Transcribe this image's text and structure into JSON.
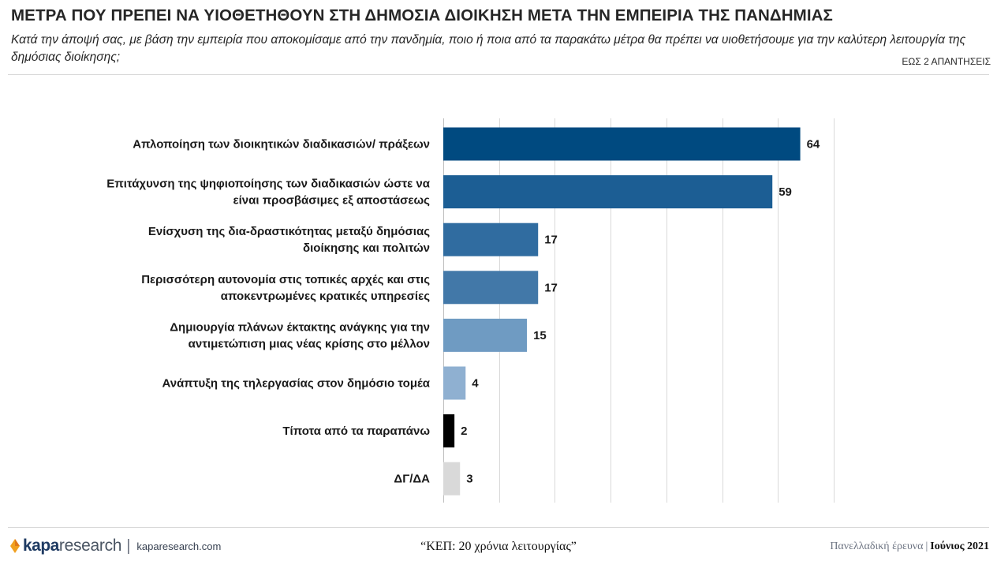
{
  "header": {
    "title": "ΜΕΤΡΑ ΠΟΥ ΠΡΕΠΕΙ ΝΑ ΥΙΟΘΕΤΗΘΟΥΝ ΣΤΗ ΔΗΜΟΣΙΑ ΔΙΟΙΚΗΣΗ ΜΕΤΑ ΤΗΝ ΕΜΠΕΙΡΙΑ ΤΗΣ ΠΑΝΔΗΜΙΑΣ",
    "subtitle": "Κατά την άποψή σας, με βάση την εμπειρία που αποκομίσαμε από την πανδημία, ποιο ή ποια από τα παρακάτω μέτρα θα πρέπει να υιοθετήσουμε για την καλύτερη λειτουργία της δημόσιας διοίκησης;",
    "note": "ΕΩΣ 2 ΑΠΑΝΤΗΣΕΙΣ"
  },
  "chart_data": {
    "type": "bar",
    "orientation": "horizontal",
    "categories": [
      [
        "Απλοποίηση των διοικητικών διαδικασιών/ πράξεων"
      ],
      [
        "Επιτάχυνση της ψηφιοποίησης των διαδικασιών ώστε να",
        "είναι προσβάσιμες εξ αποστάσεως"
      ],
      [
        "Ενίσχυση της δια-δραστικότητας μεταξύ δημόσιας",
        "διοίκησης και πολιτών"
      ],
      [
        "Περισσότερη αυτονομία στις τοπικές αρχές και στις",
        "αποκεντρωμένες κρατικές υπηρεσίες"
      ],
      [
        "Δημιουργία πλάνων έκτακτης ανάγκης για την",
        "αντιμετώπιση μιας νέας κρίσης στο μέλλον"
      ],
      [
        "Ανάπτυξη της τηλεργασίας στον δημόσιο τομέα"
      ],
      [
        "Τίποτα από τα παραπάνω"
      ],
      [
        "ΔΓ/ΔΑ"
      ]
    ],
    "values": [
      64,
      59,
      17,
      17,
      15,
      4,
      2,
      3
    ],
    "colors": [
      "#004a80",
      "#1c5e94",
      "#306ca0",
      "#4278a8",
      "#6f9bc2",
      "#8fb0d1",
      "#000000",
      "#d9d9d9"
    ],
    "xlim": [
      0,
      70
    ],
    "x_grid_step": 10,
    "grid": true,
    "title": "ΜΕΤΡΑ ΠΟΥ ΠΡΕΠΕΙ ΝΑ ΥΙΟΘΕΤΗΘΟΥΝ ΣΤΗ ΔΗΜΟΣΙΑ ΔΙΟΙΚΗΣΗ ΜΕΤΑ ΤΗΝ ΕΜΠΕΙΡΙΑ ΤΗΣ ΠΑΝΔΗΜΙΑΣ",
    "xlabel": "",
    "ylabel": ""
  },
  "footer": {
    "logo_kapa": "kapa",
    "logo_research": "research",
    "separator": "|",
    "site": "kaparesearch.com",
    "center_title": "“ΚΕΠ: 20 χρόνια λειτουργίας”",
    "survey": "Πανελλαδική έρευνα",
    "right_separator": "|",
    "date": "Ιούνιος 2021"
  },
  "icons": {
    "logo_mark": "kapa-logo-icon"
  }
}
